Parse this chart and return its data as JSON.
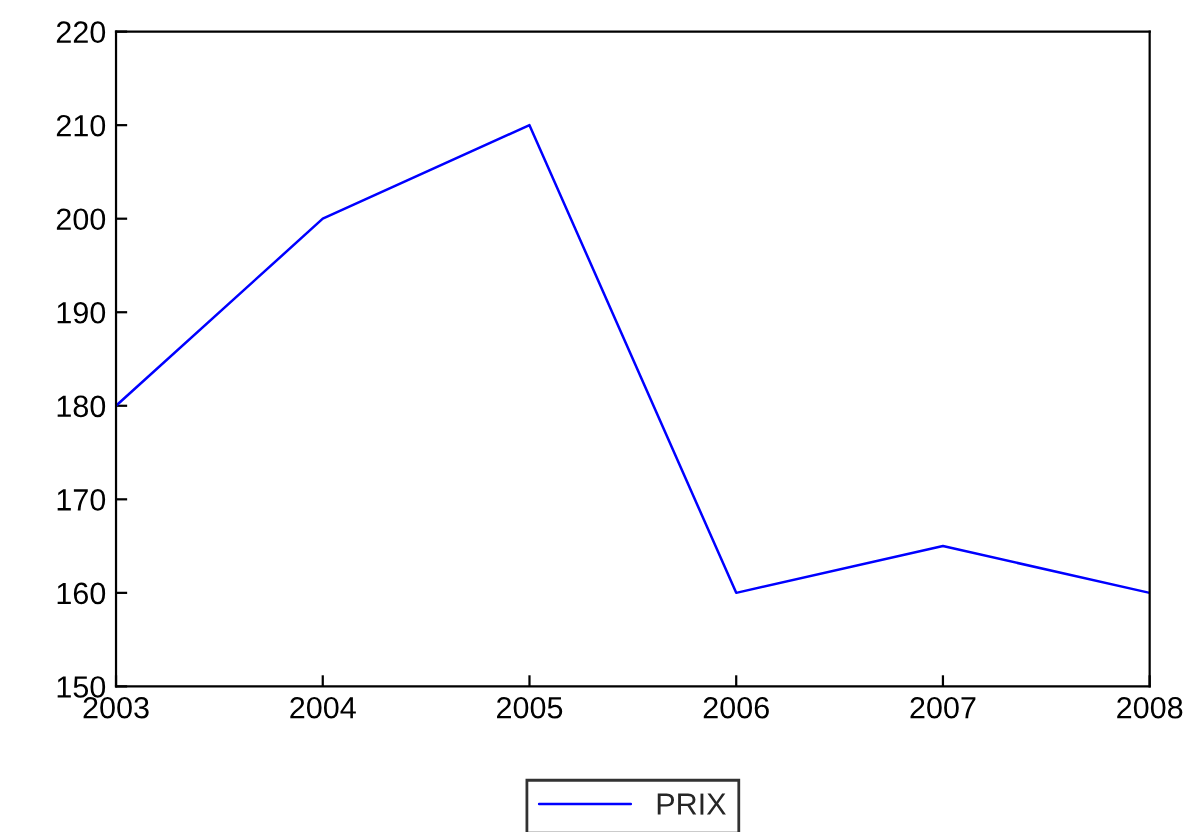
{
  "chart_data": {
    "type": "line",
    "x": [
      2003,
      2004,
      2005,
      2006,
      2007,
      2008
    ],
    "series": [
      {
        "name": "PRIX",
        "color": "#0000ff",
        "values": [
          180,
          200,
          210,
          160,
          165,
          160
        ]
      }
    ],
    "xlim": [
      2003,
      2008
    ],
    "xticks": [
      2003,
      2004,
      2005,
      2006,
      2007,
      2008
    ],
    "ylim": [
      150,
      220
    ],
    "yticks": [
      150,
      160,
      170,
      180,
      190,
      200,
      210,
      220
    ],
    "grid": false,
    "legend": "bottom",
    "marker": "none",
    "line_style": "solid"
  }
}
